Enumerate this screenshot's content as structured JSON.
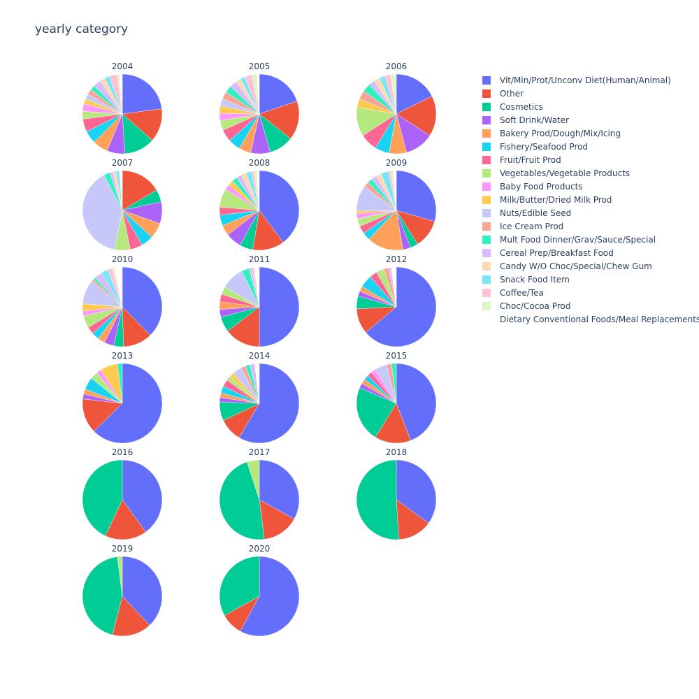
{
  "title": "yearly category",
  "chart_data": {
    "type": "pie",
    "title": "yearly category",
    "legend_position": "right",
    "categories": [
      "Vit/Min/Prot/Unconv Diet(Human/Animal)",
      "Other",
      "Cosmetics",
      "Soft Drink/Water",
      "Bakery Prod/Dough/Mix/Icing",
      "Fishery/Seafood Prod",
      "Fruit/Fruit Prod",
      "Vegetables/Vegetable Products",
      "Baby Food Products",
      "Milk/Butter/Dried Milk Prod",
      "Nuts/Edible Seed",
      "Ice Cream Prod",
      "Mult Food Dinner/Grav/Sauce/Special",
      "Cereal Prep/Breakfast Food",
      "Candy W/O Choc/Special/Chew Gum",
      "Snack Food Item",
      "Coffee/Tea",
      "Choc/Cocoa Prod",
      "Dietary Conventional Foods/Meal Replacements"
    ],
    "colors": [
      "#636efa",
      "#EF553B",
      "#00cc96",
      "#ab63fa",
      "#FFA15A",
      "#19d3f3",
      "#FF6692",
      "#B6E880",
      "#FF97FF",
      "#FECB52",
      "#c6c8fa",
      "#f7a595",
      "#33f0c0",
      "#d9bcfc",
      "#ffdab0",
      "#7ae5f8",
      "#ffc2d3",
      "#e0f5cc",
      "#ffffff"
    ],
    "pies": [
      {
        "year": "2004",
        "values": [
          22,
          13,
          12,
          7,
          6,
          5,
          5,
          3,
          3,
          2,
          2,
          2,
          2,
          3,
          2,
          2,
          3,
          1,
          1
        ]
      },
      {
        "year": "2005",
        "values": [
          20,
          16,
          10,
          8,
          5,
          5,
          5,
          4,
          3,
          3,
          3,
          3,
          3,
          3,
          2,
          2,
          3,
          2,
          1
        ]
      },
      {
        "year": "2006",
        "values": [
          15,
          14,
          0,
          10,
          6,
          5,
          6,
          10,
          0,
          3,
          0,
          3,
          3,
          2,
          2,
          2,
          2,
          2,
          0
        ]
      },
      {
        "year": "2007",
        "values": [
          0,
          13,
          4,
          7,
          5,
          4,
          4,
          5,
          0,
          0,
          31,
          0,
          2,
          1,
          1,
          1,
          0,
          0,
          1
        ]
      },
      {
        "year": "2008",
        "values": [
          37,
          12,
          5,
          6,
          4,
          4,
          3,
          7,
          2,
          2,
          0,
          0,
          2,
          2,
          2,
          2,
          1,
          1,
          1
        ]
      },
      {
        "year": "2009",
        "values": [
          28,
          11,
          3,
          3,
          14,
          3,
          3,
          3,
          2,
          1,
          10,
          2,
          2,
          2,
          2,
          3,
          1,
          1,
          1
        ]
      },
      {
        "year": "2010",
        "values": [
          38,
          12,
          4,
          4,
          3,
          3,
          3,
          5,
          2,
          3,
          10,
          1,
          1,
          3,
          0,
          3,
          2,
          1,
          3
        ]
      },
      {
        "year": "2011",
        "values": [
          48,
          14,
          6,
          3,
          3,
          0,
          3,
          3,
          0,
          0,
          9,
          0,
          3,
          1,
          0,
          0,
          1,
          0,
          2
        ]
      },
      {
        "year": "2012",
        "values": [
          62,
          10,
          5,
          2,
          2,
          5,
          3,
          3,
          0,
          0,
          0,
          2,
          0,
          1,
          0,
          0,
          0,
          0,
          2
        ]
      },
      {
        "year": "2013",
        "values": [
          62,
          14,
          0,
          2,
          2,
          5,
          0,
          3,
          2,
          7,
          0,
          0,
          2,
          0,
          0,
          0,
          0,
          0,
          0
        ]
      },
      {
        "year": "2014",
        "values": [
          62,
          10,
          8,
          2,
          2,
          3,
          3,
          2,
          0,
          2,
          4,
          2,
          2,
          2,
          0,
          0,
          0,
          0,
          2
        ]
      },
      {
        "year": "2015",
        "values": [
          45,
          15,
          23,
          2,
          2,
          2,
          2,
          0,
          2,
          0,
          5,
          2,
          2,
          0,
          0,
          0,
          0,
          0,
          0
        ]
      },
      {
        "year": "2016",
        "values": [
          40,
          17,
          43,
          0,
          0,
          0,
          0,
          0,
          0,
          0,
          0,
          0,
          0,
          0,
          0,
          0,
          0,
          0,
          0
        ]
      },
      {
        "year": "2017",
        "values": [
          33,
          15,
          47,
          0,
          0,
          0,
          0,
          5,
          0,
          0,
          0,
          0,
          0,
          0,
          0,
          0,
          0,
          0,
          0
        ]
      },
      {
        "year": "2018",
        "values": [
          35,
          14,
          51,
          0,
          0,
          0,
          0,
          0,
          0,
          0,
          0,
          0,
          0,
          0,
          0,
          0,
          0,
          0,
          0
        ]
      },
      {
        "year": "2019",
        "values": [
          38,
          16,
          44,
          0,
          0,
          0,
          0,
          2,
          0,
          0,
          0,
          0,
          0,
          0,
          0,
          0,
          0,
          0,
          0
        ]
      },
      {
        "year": "2020",
        "values": [
          58,
          9,
          33,
          0,
          0,
          0,
          0,
          0,
          0,
          0,
          0,
          0,
          0,
          0,
          0,
          0,
          0,
          0,
          0
        ]
      }
    ]
  }
}
